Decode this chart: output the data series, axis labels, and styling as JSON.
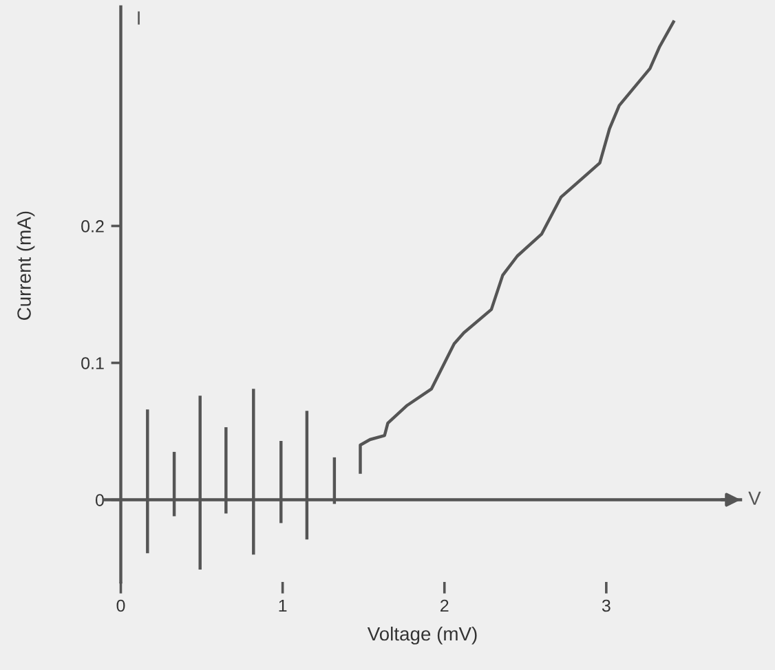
{
  "chart_data": {
    "type": "line",
    "xlabel": "Voltage (mV)",
    "ylabel": "Current (mA)",
    "xlim": [
      -0.1,
      3.83
    ],
    "ylim": [
      -0.06,
      0.36
    ],
    "xticks": [
      0,
      1,
      2,
      3
    ],
    "yticks": [
      0,
      0.1,
      0.2
    ],
    "legend": false,
    "marker": "none",
    "line_style": "solid",
    "annotations": [
      "I",
      "V"
    ],
    "series": [
      {
        "color": "#555555",
        "x": [
          0.165,
          0.165
        ],
        "values": [
          -0.039,
          0.066
        ]
      },
      {
        "color": "#555555",
        "x": [
          0.33,
          0.33
        ],
        "values": [
          -0.012,
          0.035
        ]
      },
      {
        "color": "#555555",
        "x": [
          0.49,
          0.49
        ],
        "values": [
          -0.051,
          0.076
        ]
      },
      {
        "color": "#555555",
        "x": [
          0.65,
          0.65
        ],
        "values": [
          -0.01,
          0.053
        ]
      },
      {
        "color": "#555555",
        "x": [
          0.82,
          0.82
        ],
        "values": [
          -0.04,
          0.081
        ]
      },
      {
        "color": "#555555",
        "x": [
          0.99,
          0.99
        ],
        "values": [
          -0.017,
          0.043
        ]
      },
      {
        "color": "#555555",
        "x": [
          1.15,
          1.15
        ],
        "values": [
          -0.029,
          0.065
        ]
      },
      {
        "color": "#555555",
        "x": [
          1.32,
          1.32
        ],
        "values": [
          -0.003,
          0.031
        ]
      },
      {
        "color": "#555555",
        "x": [
          1.48,
          1.48,
          1.54,
          1.63,
          1.65,
          1.77,
          1.92,
          2.06,
          2.12,
          2.29,
          2.36,
          2.45,
          2.6,
          2.72,
          2.96,
          3.02,
          3.08,
          3.27,
          3.33,
          3.42
        ],
        "values": [
          0.019,
          0.04,
          0.044,
          0.047,
          0.056,
          0.069,
          0.081,
          0.114,
          0.122,
          0.139,
          0.164,
          0.178,
          0.194,
          0.221,
          0.246,
          0.271,
          0.288,
          0.315,
          0.331,
          0.35
        ]
      }
    ]
  }
}
